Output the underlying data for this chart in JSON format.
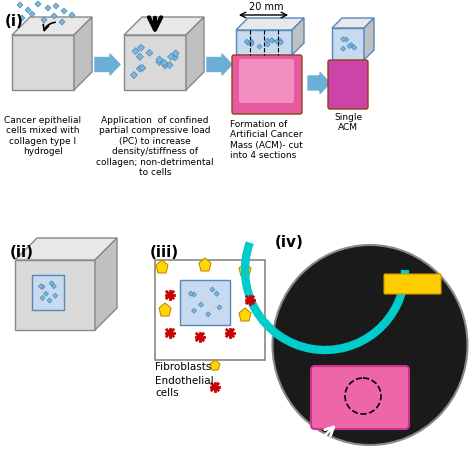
{
  "background_color": "#ffffff",
  "title": "",
  "panel_labels": [
    "(i)",
    "(ii)",
    "(iii)",
    "(iv)"
  ],
  "label_fontsize": 11,
  "annotation_fontsize": 7.5,
  "panel_i_labels": [
    "Cancer epithelial\ncells mixed with\ncollagen type I\nhydrogel",
    "Application  of confined\npartial compressive load\n(PC) to increase\ndensity/stiffness of\ncollagen; non-detrimental\nto cells",
    "Formation of\nArtificial Cancer\nMass (ACM)- cut\ninto 4 sections",
    "Single\nACM"
  ],
  "blue_arrow_color": "#6baed6",
  "black_arrow_color": "#000000",
  "cube_face_color": "#d9d9d9",
  "cube_edge_color": "#888888",
  "cell_color": "#7ab8e0",
  "fibroblast_color": "#ffd700",
  "endothelial_color": "#cc0000",
  "dim_label": "20 mm"
}
